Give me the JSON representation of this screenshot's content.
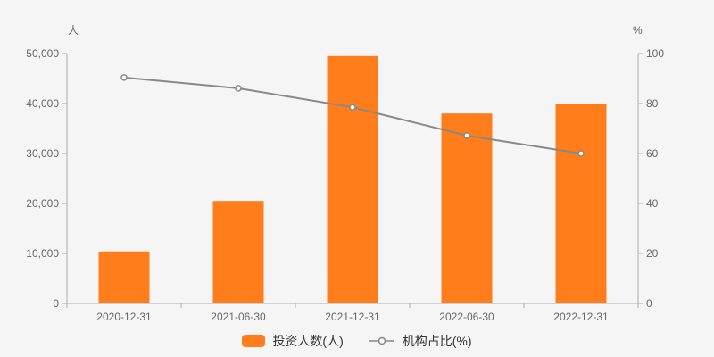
{
  "chart_data": {
    "type": "combo",
    "background": "#f5f5f5",
    "categories": [
      "2020-12-31",
      "2021-06-30",
      "2021-12-31",
      "2022-06-30",
      "2022-12-31"
    ],
    "series": [
      {
        "name": "投资人数(人)",
        "type": "bar",
        "axis": "left",
        "color": "#ff7d1a",
        "values": [
          10400,
          20500,
          49500,
          38000,
          40000
        ]
      },
      {
        "name": "机构占比(%)",
        "type": "line",
        "axis": "right",
        "color": "#888888",
        "marker_fill": "#ffffff",
        "values": [
          90.4,
          86.1,
          78.5,
          67.2,
          60.0
        ]
      }
    ],
    "left_axis": {
      "label": "人",
      "min": 0,
      "max": 50000,
      "tick_labels": [
        "0",
        "10,000",
        "20,000",
        "30,000",
        "40,000",
        "50,000"
      ]
    },
    "right_axis": {
      "label": "%",
      "min": 0,
      "max": 100,
      "tick_labels": [
        "0",
        "20",
        "40",
        "60",
        "80",
        "100"
      ]
    },
    "legend": [
      {
        "label": "投资人数(人)",
        "marker": "bar"
      },
      {
        "label": "机构占比(%)",
        "marker": "line-circle"
      }
    ],
    "grid": false,
    "legend_position": "bottom-center",
    "axis_line_color": "#aaaaaa",
    "tick_text_color": "#666666"
  }
}
